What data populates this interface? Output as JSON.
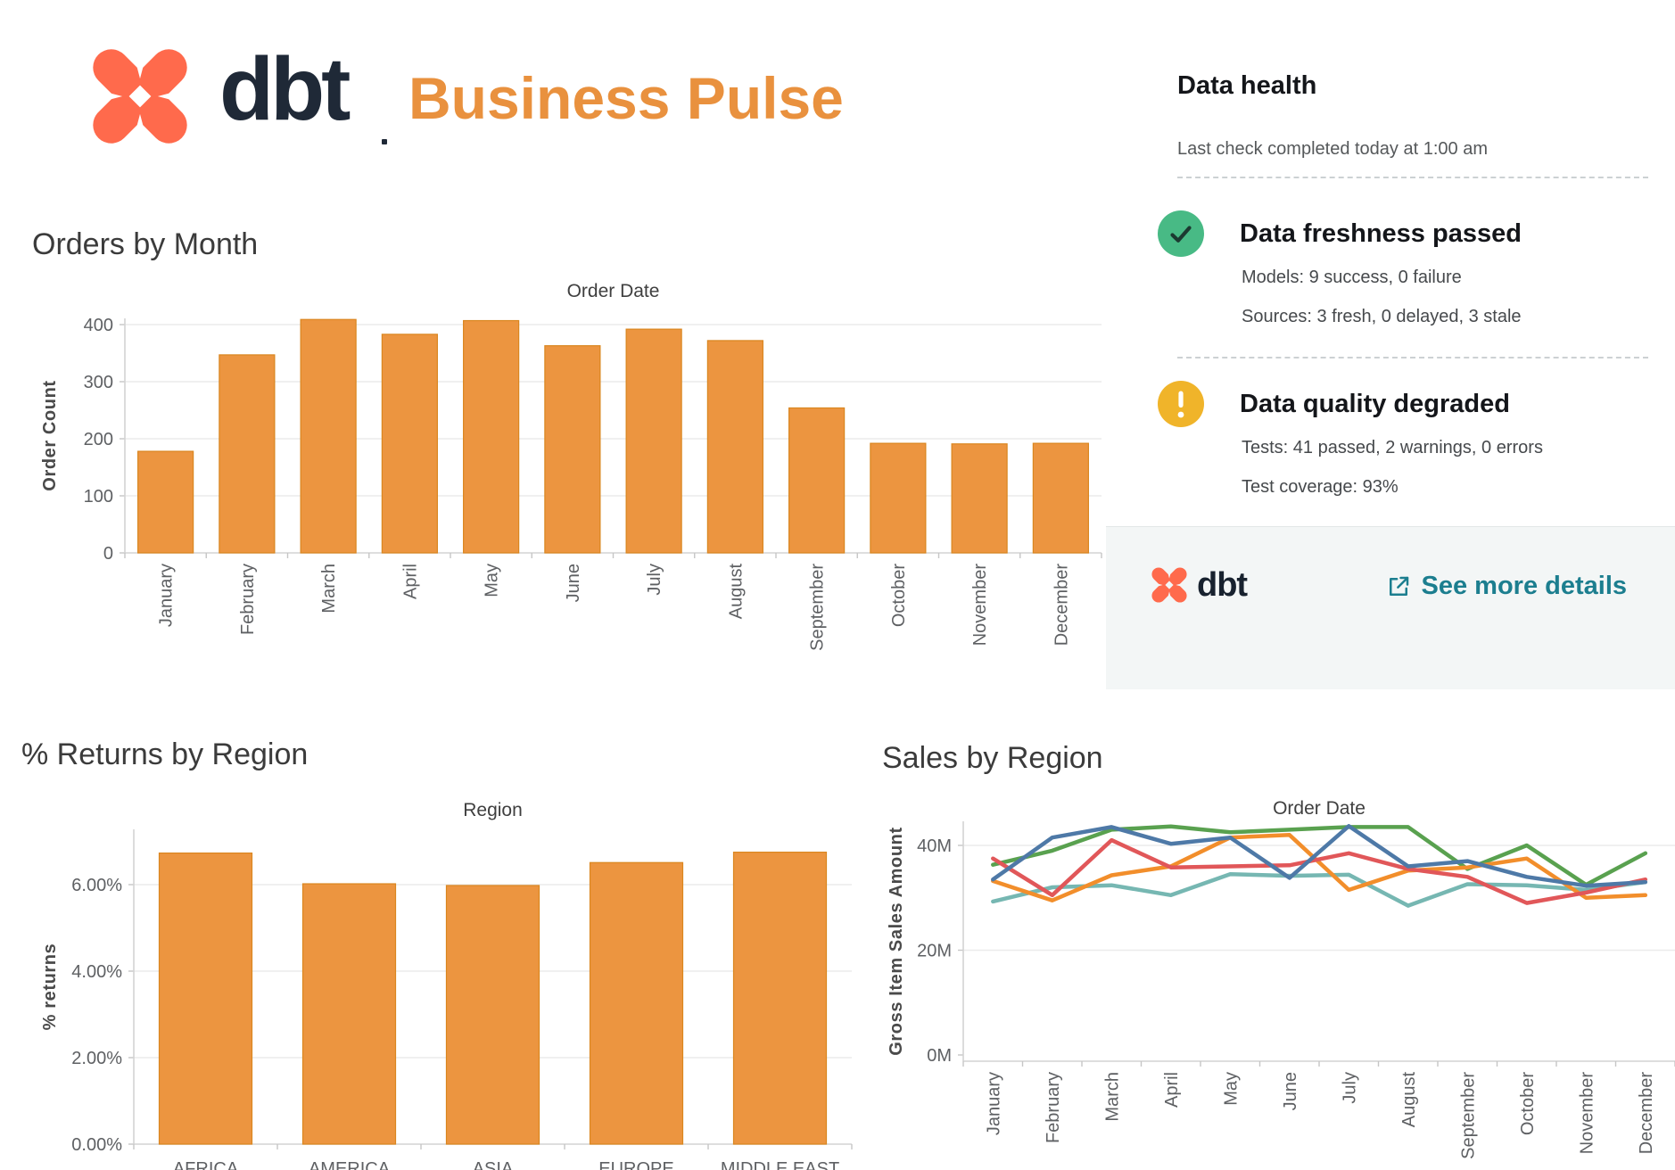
{
  "header": {
    "brand_wordmark": "dbt",
    "title": "Business Pulse"
  },
  "health_panel": {
    "title": "Data health",
    "last_check": "Last check completed today at 1:00 am",
    "freshness": {
      "status": "passed",
      "status_color": "#48BA85",
      "title": "Data freshness passed",
      "models_line": "Models: 9 success, 0 failure",
      "sources_line": "Sources: 3 fresh, 0 delayed, 3 stale"
    },
    "quality": {
      "status": "warning",
      "status_color": "#F0B42A",
      "title": "Data quality degraded",
      "tests_line": "Tests: 41 passed, 2 warnings, 0 errors",
      "coverage_line": "Test coverage: 93%"
    },
    "footer": {
      "brand_wordmark": "dbt",
      "link_label": "See more details",
      "link_color": "#1C7E8F"
    }
  },
  "colors": {
    "brand_orange": "#FF6A4C",
    "title_orange": "#E9913E",
    "bar_fill": "#EC9540",
    "bar_stroke": "#DA861F",
    "wordmark_dark": "#1F2937",
    "footer_bg": "#F3F6F6"
  },
  "chart_data": [
    {
      "id": "orders_by_month",
      "type": "bar",
      "title": "Orders by Month",
      "xlabel": "Order Date",
      "ylabel": "Order Count",
      "x_axis_title_position": "top",
      "grid": true,
      "legend": "none",
      "ylim": [
        0,
        430
      ],
      "yticks": [
        {
          "v": 0,
          "label": "0"
        },
        {
          "v": 100,
          "label": "100"
        },
        {
          "v": 200,
          "label": "200"
        },
        {
          "v": 300,
          "label": "300"
        },
        {
          "v": 400,
          "label": "400"
        }
      ],
      "categories": [
        "January",
        "February",
        "March",
        "April",
        "May",
        "June",
        "July",
        "August",
        "September",
        "October",
        "November",
        "December"
      ],
      "values": [
        178,
        347,
        409,
        383,
        407,
        363,
        392,
        372,
        254,
        192,
        191,
        192
      ],
      "bar_color": "#EC9540",
      "bar_stroke": "#DA861F"
    },
    {
      "id": "returns_by_region",
      "type": "bar",
      "title": "% Returns by Region",
      "xlabel": "Region",
      "ylabel": "% returns",
      "x_axis_title_position": "top",
      "grid": true,
      "legend": "none",
      "ylim": [
        0,
        7.3
      ],
      "yticks": [
        {
          "v": 0,
          "label": "0.00%"
        },
        {
          "v": 2,
          "label": "2.00%"
        },
        {
          "v": 4,
          "label": "4.00%"
        },
        {
          "v": 6,
          "label": "6.00%"
        }
      ],
      "categories": [
        "AFRICA",
        "AMERICA",
        "ASIA",
        "EUROPE",
        "MIDDLE EAST"
      ],
      "values": [
        6.73,
        6.02,
        5.98,
        6.51,
        6.75
      ],
      "bar_color": "#EC9540",
      "bar_stroke": "#DA861F"
    },
    {
      "id": "sales_by_region",
      "type": "line",
      "title": "Sales by Region",
      "xlabel": "Order Date",
      "ylabel": "Gross Item Sales Amount",
      "x_axis_title_position": "top",
      "grid": true,
      "legend": "none",
      "unit": "millions",
      "ylim": [
        0,
        46
      ],
      "yticks": [
        {
          "v": 0,
          "label": "0M"
        },
        {
          "v": 20,
          "label": "20M"
        },
        {
          "v": 40,
          "label": "40M"
        }
      ],
      "categories": [
        "January",
        "February",
        "March",
        "April",
        "May",
        "June",
        "July",
        "August",
        "September",
        "October",
        "November",
        "December"
      ],
      "series": [
        {
          "name": "blue",
          "color": "#4E79A7",
          "values": [
            33.5,
            41.5,
            43.5,
            40.3,
            41.5,
            33.8,
            43.7,
            36.0,
            37.0,
            34.0,
            32.3,
            33.0
          ]
        },
        {
          "name": "orange",
          "color": "#F28E2B",
          "values": [
            33.2,
            29.5,
            34.3,
            36.0,
            41.5,
            42.0,
            31.5,
            35.2,
            35.8,
            37.5,
            30.0,
            30.5
          ]
        },
        {
          "name": "red",
          "color": "#E15759",
          "values": [
            37.5,
            30.5,
            41.0,
            35.8,
            36.0,
            36.2,
            38.5,
            35.5,
            34.0,
            29.0,
            31.0,
            33.5
          ]
        },
        {
          "name": "teal",
          "color": "#76B7B2",
          "values": [
            29.3,
            32.0,
            32.4,
            30.5,
            34.5,
            34.2,
            34.4,
            28.5,
            32.6,
            32.4,
            31.5,
            33.0
          ]
        },
        {
          "name": "green",
          "color": "#59A14F",
          "values": [
            36.3,
            39.0,
            43.0,
            43.6,
            42.5,
            43.0,
            43.5,
            43.5,
            35.5,
            40.0,
            32.5,
            38.5
          ]
        }
      ],
      "draw_order": [
        3,
        4,
        1,
        2,
        0
      ],
      "line_width": 4.5
    }
  ]
}
